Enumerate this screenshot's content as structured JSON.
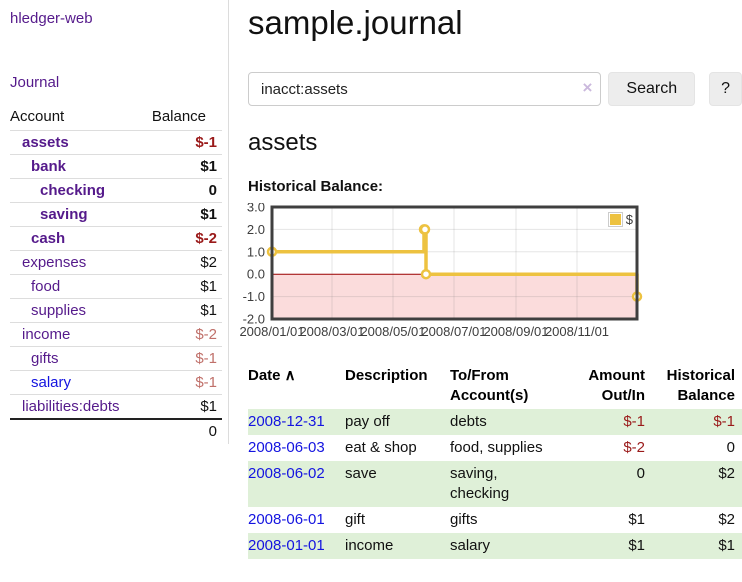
{
  "sidebar": {
    "app_title": "hledger-web",
    "journal_label": "Journal",
    "accounts_header": {
      "account": "Account",
      "balance": "Balance"
    },
    "accounts": [
      {
        "name": "assets",
        "level": 1,
        "bold": true,
        "balance": "$-1",
        "balance_style": "neg-bold"
      },
      {
        "name": "bank",
        "level": 2,
        "bold": true,
        "balance": "$1",
        "balance_style": "bold"
      },
      {
        "name": "checking",
        "level": 3,
        "bold": true,
        "balance": "0",
        "balance_style": "bold"
      },
      {
        "name": "saving",
        "level": 3,
        "bold": true,
        "balance": "$1",
        "balance_style": "bold"
      },
      {
        "name": "cash",
        "level": 2,
        "bold": true,
        "balance": "$-2",
        "balance_style": "neg-bold"
      },
      {
        "name": "expenses",
        "level": 1,
        "bold": false,
        "balance": "$2",
        "balance_style": "plain"
      },
      {
        "name": "food",
        "level": 2,
        "bold": false,
        "balance": "$1",
        "balance_style": "plain"
      },
      {
        "name": "supplies",
        "level": 2,
        "bold": false,
        "balance": "$1",
        "balance_style": "plain"
      },
      {
        "name": "income",
        "level": 1,
        "bold": false,
        "balance": "$-2",
        "balance_style": "dim-neg"
      },
      {
        "name": "gifts",
        "level": 2,
        "bold": false,
        "balance": "$-1",
        "balance_style": "dim-neg"
      },
      {
        "name": "salary",
        "level": 2,
        "bold": false,
        "link_color": "blue",
        "balance": "$-1",
        "balance_style": "dim-neg"
      },
      {
        "name": "liabilities:debts",
        "level": 1,
        "bold": false,
        "balance": "$1",
        "balance_style": "plain"
      }
    ],
    "total": "0"
  },
  "main": {
    "title": "sample.journal",
    "search": {
      "value": "inacct:assets",
      "clear_icon": "×",
      "button_label": "Search",
      "help_label": "?"
    },
    "account_heading": "assets",
    "chart_title": "Historical Balance:",
    "table": {
      "sort_arrow": "∧",
      "columns": [
        {
          "label": "Date",
          "sorted": true,
          "align": "left"
        },
        {
          "label": "Description",
          "align": "left"
        },
        {
          "label": "To/From Account(s)",
          "align": "left"
        },
        {
          "label": "Amount Out/In",
          "align": "right"
        },
        {
          "label": "Historical Balance",
          "align": "right"
        }
      ],
      "rows": [
        {
          "date": "2008-12-31",
          "description": "pay off",
          "accounts": "debts",
          "amount": "$-1",
          "amount_neg": true,
          "balance": "$-1",
          "balance_neg": true
        },
        {
          "date": "2008-06-03",
          "description": "eat & shop",
          "accounts": "food, supplies",
          "amount": "$-2",
          "amount_neg": true,
          "balance": "0",
          "balance_neg": false
        },
        {
          "date": "2008-06-02",
          "description": "save",
          "accounts": "saving, checking",
          "amount": "0",
          "amount_neg": false,
          "balance": "$2",
          "balance_neg": false
        },
        {
          "date": "2008-06-01",
          "description": "gift",
          "accounts": "gifts",
          "amount": "$1",
          "amount_neg": false,
          "balance": "$2",
          "balance_neg": false
        },
        {
          "date": "2008-01-01",
          "description": "income",
          "accounts": "salary",
          "amount": "$1",
          "amount_neg": false,
          "balance": "$1",
          "balance_neg": false
        }
      ]
    }
  },
  "chart_data": {
    "type": "line",
    "line_style": "step",
    "title": "Historical Balance:",
    "legend": {
      "label": "$",
      "position": "top-right"
    },
    "series": [
      {
        "name": "$",
        "color": "#EDC240",
        "points": [
          [
            "2008-01-01",
            1
          ],
          [
            "2008-06-01",
            2
          ],
          [
            "2008-06-02",
            2
          ],
          [
            "2008-06-03",
            0
          ],
          [
            "2008-12-31",
            -1
          ]
        ]
      }
    ],
    "xlim": [
      "2008-01-01",
      "2008-12-31"
    ],
    "ylim": [
      -2,
      3
    ],
    "yticks": [
      3.0,
      2.0,
      1.0,
      0.0,
      -1.0,
      -2.0
    ],
    "xticks": [
      "2008/01/01",
      "2008/03/01",
      "2008/05/01",
      "2008/07/01",
      "2008/09/01",
      "2008/11/01"
    ],
    "grid": true,
    "zero_line_color": "#990000",
    "negative_region_color": "#fbdcdc"
  },
  "colors": {
    "link_purple": "#551a8b",
    "link_blue": "#1414e0",
    "negative_red": "#9a1a1a",
    "muted_negative_red": "#c0706a",
    "row_stripe_green": "#dff0d8",
    "chart_series_gold": "#EDC240"
  }
}
